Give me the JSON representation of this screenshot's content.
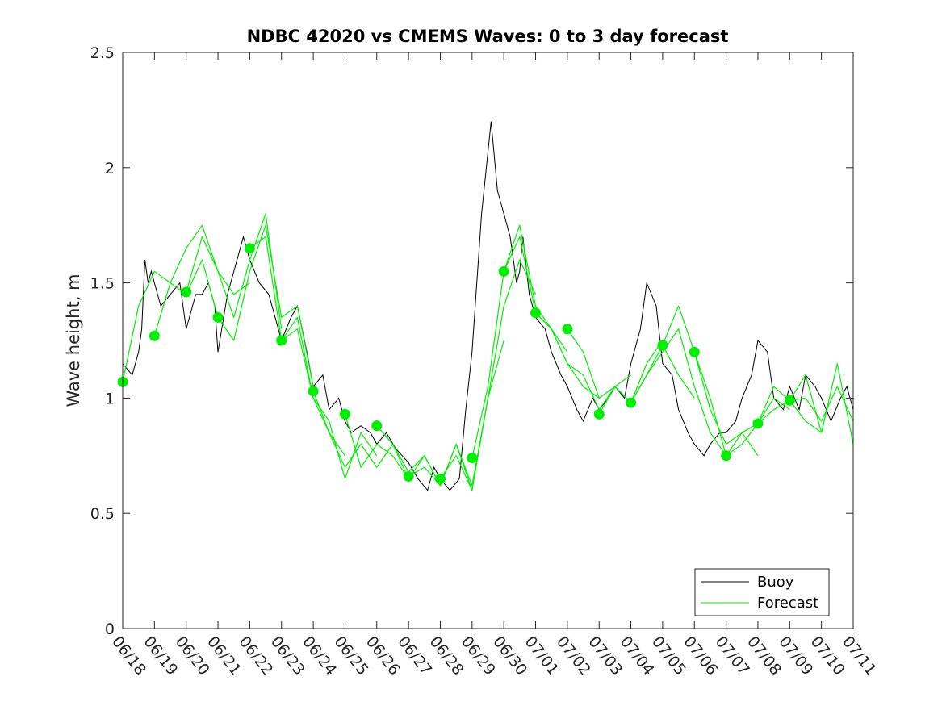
{
  "chart_data": {
    "type": "line",
    "title": "NDBC 42020 vs CMEMS Waves: 0 to 3 day forecast",
    "xlabel": "",
    "ylabel": "Wave height, m",
    "ylim": [
      0,
      2.5
    ],
    "yticks": [
      "0",
      "0.5",
      "1",
      "1.5",
      "2",
      "2.5"
    ],
    "xlim": [
      "06/18",
      "07/11"
    ],
    "xticks": [
      "06/18",
      "06/19",
      "06/20",
      "06/21",
      "06/22",
      "06/23",
      "06/24",
      "06/25",
      "06/26",
      "06/27",
      "06/28",
      "06/29",
      "06/30",
      "07/01",
      "07/02",
      "07/03",
      "07/04",
      "07/05",
      "07/06",
      "07/07",
      "07/08",
      "07/09",
      "07/10",
      "07/11"
    ],
    "grid": false,
    "legend": {
      "placement": "bottom-right",
      "entries": [
        "Buoy",
        "Forecast"
      ]
    },
    "colors": {
      "buoy": "#000000",
      "forecast": "#00ee00"
    },
    "series": [
      {
        "name": "Buoy",
        "day": [
          0,
          0.3,
          0.5,
          0.6,
          0.7,
          0.8,
          0.9,
          1.0,
          1.2,
          1.5,
          1.8,
          2.0,
          2.3,
          2.5,
          2.7,
          2.9,
          3.0,
          3.3,
          3.6,
          3.8,
          4.0,
          4.3,
          4.6,
          4.8,
          5.0,
          5.3,
          5.5,
          5.8,
          6.0,
          6.3,
          6.5,
          6.8,
          7.0,
          7.2,
          7.5,
          7.8,
          8.0,
          8.3,
          8.6,
          8.8,
          9.0,
          9.3,
          9.6,
          9.8,
          10.0,
          10.3,
          10.6,
          10.8,
          11.0,
          11.3,
          11.6,
          11.8,
          12.0,
          12.1,
          12.2,
          12.3,
          12.4,
          12.5,
          12.6,
          12.8,
          13.0,
          13.3,
          13.5,
          13.8,
          14.0,
          14.3,
          14.5,
          14.8,
          15.0,
          15.3,
          15.5,
          15.8,
          16.0,
          16.3,
          16.5,
          16.8,
          17.0,
          17.3,
          17.5,
          17.8,
          18.0,
          18.3,
          18.5,
          18.8,
          19.0,
          19.3,
          19.5,
          19.8,
          20.0,
          20.3,
          20.5,
          20.8,
          21.0,
          21.3,
          21.5,
          21.8,
          22.0,
          22.3,
          22.6,
          22.8,
          23.0
        ],
        "values": [
          1.15,
          1.1,
          1.2,
          1.3,
          1.6,
          1.5,
          1.55,
          1.5,
          1.4,
          1.45,
          1.5,
          1.3,
          1.45,
          1.45,
          1.5,
          1.4,
          1.2,
          1.45,
          1.6,
          1.7,
          1.6,
          1.5,
          1.45,
          1.35,
          1.25,
          1.35,
          1.4,
          1.2,
          1.05,
          1.1,
          0.95,
          1.0,
          0.9,
          0.85,
          0.88,
          0.85,
          0.8,
          0.85,
          0.78,
          0.75,
          0.72,
          0.65,
          0.6,
          0.7,
          0.65,
          0.6,
          0.65,
          0.95,
          1.2,
          1.8,
          2.2,
          1.9,
          1.8,
          1.75,
          1.7,
          1.6,
          1.5,
          1.55,
          1.7,
          1.45,
          1.35,
          1.3,
          1.2,
          1.1,
          1.05,
          0.95,
          0.9,
          1.0,
          0.95,
          1.0,
          1.05,
          1.0,
          1.15,
          1.3,
          1.5,
          1.4,
          1.15,
          1.1,
          0.95,
          0.85,
          0.8,
          0.75,
          0.8,
          0.85,
          0.85,
          0.9,
          1.0,
          1.1,
          1.25,
          1.2,
          1.0,
          0.95,
          1.05,
          0.95,
          1.1,
          1.05,
          1.0,
          0.9,
          1.0,
          1.05,
          0.95
        ]
      },
      {
        "name": "Forecast",
        "runs": [
          {
            "day": [
              0,
              0.5,
              1,
              1.5,
              2,
              2.5,
              3
            ],
            "values": [
              1.07,
              1.4,
              1.55,
              1.5,
              1.45,
              1.6,
              1.35
            ]
          },
          {
            "day": [
              1,
              1.5,
              2,
              2.5,
              3,
              3.5,
              4
            ],
            "values": [
              1.27,
              1.5,
              1.65,
              1.75,
              1.55,
              1.45,
              1.5
            ]
          },
          {
            "day": [
              2,
              2.5,
              3,
              3.5,
              4,
              4.5,
              5
            ],
            "values": [
              1.46,
              1.7,
              1.55,
              1.35,
              1.6,
              1.8,
              1.3
            ]
          },
          {
            "day": [
              3,
              3.5,
              4,
              4.5,
              5,
              5.5,
              6
            ],
            "values": [
              1.35,
              1.25,
              1.55,
              1.75,
              1.35,
              1.4,
              1.05
            ]
          },
          {
            "day": [
              4,
              4.5,
              5,
              5.5,
              6,
              6.5,
              7
            ],
            "values": [
              1.65,
              1.7,
              1.25,
              1.3,
              1.0,
              0.85,
              0.75
            ]
          },
          {
            "day": [
              5,
              5.5,
              6,
              6.5,
              7,
              7.5,
              8
            ],
            "values": [
              1.25,
              1.35,
              1.0,
              0.9,
              0.65,
              0.85,
              0.75
            ]
          },
          {
            "day": [
              6,
              6.5,
              7,
              7.5,
              8,
              8.5,
              9
            ],
            "values": [
              1.03,
              0.85,
              0.7,
              0.8,
              0.7,
              0.8,
              0.65
            ]
          },
          {
            "day": [
              7,
              7.5,
              8,
              8.5,
              9,
              9.5,
              10
            ],
            "values": [
              0.93,
              0.7,
              0.8,
              0.75,
              0.65,
              0.75,
              0.62
            ]
          },
          {
            "day": [
              8,
              8.5,
              9,
              9.5,
              10,
              10.5,
              11
            ],
            "values": [
              0.88,
              0.8,
              0.68,
              0.75,
              0.62,
              0.8,
              0.6
            ]
          },
          {
            "day": [
              9,
              9.5,
              10,
              10.5,
              11,
              11.5,
              12
            ],
            "values": [
              0.66,
              0.7,
              0.62,
              0.8,
              0.62,
              1.0,
              1.25
            ]
          },
          {
            "day": [
              10,
              10.5,
              11,
              11.5,
              12,
              12.5,
              13
            ],
            "values": [
              0.65,
              0.75,
              0.6,
              1.0,
              1.4,
              1.6,
              1.45
            ]
          },
          {
            "day": [
              11,
              11.5,
              12,
              12.5,
              13,
              13.5,
              14
            ],
            "values": [
              0.74,
              1.05,
              1.55,
              1.75,
              1.4,
              1.3,
              1.2
            ]
          },
          {
            "day": [
              12,
              12.5,
              13,
              13.5,
              14,
              14.5,
              15
            ],
            "values": [
              1.55,
              1.7,
              1.37,
              1.3,
              1.15,
              1.05,
              1.0
            ]
          },
          {
            "day": [
              13,
              13.5,
              14,
              14.5,
              15,
              15.5,
              16
            ],
            "values": [
              1.37,
              1.3,
              1.15,
              1.1,
              0.95,
              1.05,
              1.1
            ]
          },
          {
            "day": [
              14,
              14.5,
              15,
              15.5,
              16,
              16.5,
              17
            ],
            "values": [
              1.3,
              1.2,
              1.0,
              1.05,
              0.98,
              1.15,
              1.25
            ]
          },
          {
            "day": [
              15,
              15.5,
              16,
              16.5,
              17,
              17.5,
              18
            ],
            "values": [
              0.93,
              1.05,
              0.98,
              1.1,
              1.23,
              1.1,
              1.0
            ]
          },
          {
            "day": [
              16,
              16.5,
              17,
              17.5,
              18,
              18.5,
              19
            ],
            "values": [
              0.98,
              1.1,
              1.2,
              1.3,
              1.05,
              0.85,
              0.75
            ]
          },
          {
            "day": [
              17,
              17.5,
              18,
              18.5,
              19,
              19.5,
              20
            ],
            "values": [
              1.23,
              1.4,
              1.2,
              0.95,
              0.8,
              0.85,
              0.75
            ]
          },
          {
            "day": [
              18,
              18.5,
              19,
              19.5,
              20,
              20.5,
              21
            ],
            "values": [
              1.2,
              1.0,
              0.75,
              0.85,
              0.89,
              1.0,
              0.95
            ]
          },
          {
            "day": [
              19,
              19.5,
              20,
              20.5,
              21,
              21.5,
              22
            ],
            "values": [
              0.75,
              0.8,
              0.89,
              1.05,
              0.99,
              0.9,
              0.85
            ]
          },
          {
            "day": [
              20,
              20.5,
              21,
              21.5,
              22,
              22.5,
              23
            ],
            "values": [
              0.89,
              0.95,
              0.99,
              1.1,
              0.85,
              1.15,
              0.8
            ]
          },
          {
            "day": [
              21,
              21.5,
              22,
              22.5,
              23
            ],
            "values": [
              0.99,
              1.0,
              0.9,
              1.05,
              0.9
            ]
          }
        ],
        "markers": {
          "day": [
            0,
            1,
            2,
            3,
            4,
            5,
            6,
            7,
            8,
            9,
            10,
            11,
            12,
            13,
            14,
            15,
            16,
            17,
            18,
            19,
            20,
            21
          ],
          "values": [
            1.07,
            1.27,
            1.46,
            1.35,
            1.65,
            1.25,
            1.03,
            0.93,
            0.88,
            0.66,
            0.65,
            0.74,
            1.55,
            1.37,
            1.3,
            0.93,
            0.98,
            1.23,
            1.2,
            0.75,
            0.89,
            0.99
          ]
        }
      }
    ]
  }
}
